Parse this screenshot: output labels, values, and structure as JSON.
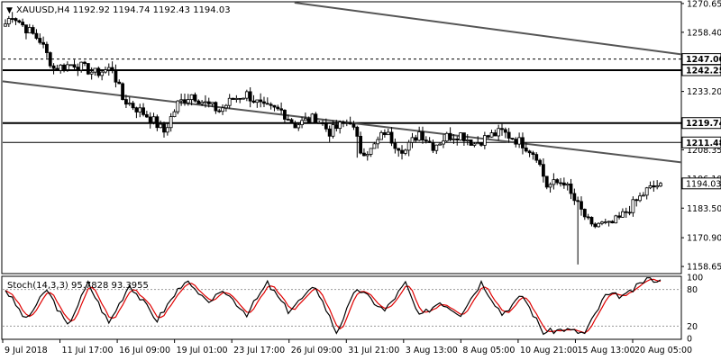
{
  "chart_data": {
    "type": "candlestick",
    "title": "XAUUSD,H4  1192.92 1194.74 1192.43 1194.03",
    "symbol": "XAUUSD",
    "timeframe": "H4",
    "last_ohlc": {
      "open": 1192.92,
      "high": 1194.74,
      "low": 1192.43,
      "close": 1194.03
    },
    "y_ticks": [
      "1270.65",
      "1258.40",
      "1233.20",
      "1208.35",
      "1196.10",
      "1183.50",
      "1170.90",
      "1158.65"
    ],
    "ylim": [
      1156.0,
      1271.0
    ],
    "x_labels": [
      "9 Jul 2018",
      "11 Jul 17:00",
      "16 Jul 09:00",
      "19 Jul 01:00",
      "23 Jul 17:00",
      "26 Jul 09:00",
      "31 Jul 21:00",
      "3 Aug 13:00",
      "8 Aug 05:00",
      "10 Aug 21:00",
      "15 Aug 13:00",
      "20 Aug 05:00"
    ],
    "horizontal_levels": [
      {
        "label": "1247.00",
        "value": 1247.0,
        "style": "dashed"
      },
      {
        "label": "1242.25",
        "value": 1242.25,
        "style": "solid-thick"
      },
      {
        "label": "1219.74",
        "value": 1219.74,
        "style": "solid-thick"
      },
      {
        "label": "1211.48",
        "value": 1211.48,
        "style": "solid-thin"
      }
    ],
    "current_price_label": "1194.03",
    "trendlines": [
      {
        "from": [
          0.43,
          1271.0
        ],
        "to": [
          1.0,
          1249.0
        ]
      },
      {
        "from": [
          0.0,
          1237.5
        ],
        "to": [
          1.0,
          1203.0
        ]
      }
    ],
    "anchors": [
      [
        0,
        1262
      ],
      [
        2,
        1266
      ],
      [
        6,
        1260
      ],
      [
        10,
        1255
      ],
      [
        14,
        1243
      ],
      [
        20,
        1245
      ],
      [
        26,
        1241
      ],
      [
        31,
        1243
      ],
      [
        34,
        1230
      ],
      [
        38,
        1226
      ],
      [
        42,
        1222
      ],
      [
        46,
        1216
      ],
      [
        50,
        1228
      ],
      [
        54,
        1232
      ],
      [
        58,
        1228
      ],
      [
        62,
        1225
      ],
      [
        66,
        1230
      ],
      [
        70,
        1232
      ],
      [
        75,
        1226
      ],
      [
        80,
        1225
      ],
      [
        84,
        1219
      ],
      [
        90,
        1222
      ],
      [
        94,
        1216
      ],
      [
        100,
        1221
      ],
      [
        103,
        1208
      ],
      [
        106,
        1208
      ],
      [
        110,
        1216
      ],
      [
        113,
        1211
      ],
      [
        116,
        1208
      ],
      [
        120,
        1216
      ],
      [
        124,
        1210
      ],
      [
        128,
        1214
      ],
      [
        132,
        1215
      ],
      [
        136,
        1211
      ],
      [
        140,
        1214
      ],
      [
        144,
        1216
      ],
      [
        150,
        1211
      ],
      [
        154,
        1206
      ],
      [
        157,
        1193
      ],
      [
        162,
        1195
      ],
      [
        164,
        1189
      ],
      [
        168,
        1180
      ],
      [
        170,
        1175
      ],
      [
        172,
        1177
      ],
      [
        175,
        1176
      ],
      [
        178,
        1179
      ],
      [
        182,
        1185
      ],
      [
        186,
        1191
      ],
      [
        190,
        1194
      ]
    ],
    "candle_count": 191,
    "indicator": {
      "name": "Stoch(14,3,3)",
      "title": "Stoch(14,3,3) 95.7828 93.3955",
      "main": 95.7828,
      "signal": 93.3955,
      "levels": [
        80,
        20
      ],
      "scale_labels": [
        "100",
        "80",
        "20",
        "0"
      ],
      "anchors": [
        [
          0,
          80
        ],
        [
          6,
          30
        ],
        [
          12,
          80
        ],
        [
          18,
          20
        ],
        [
          24,
          90
        ],
        [
          30,
          25
        ],
        [
          36,
          88
        ],
        [
          44,
          30
        ],
        [
          52,
          95
        ],
        [
          58,
          60
        ],
        [
          64,
          75
        ],
        [
          70,
          40
        ],
        [
          76,
          90
        ],
        [
          82,
          45
        ],
        [
          90,
          85
        ],
        [
          96,
          10
        ],
        [
          102,
          82
        ],
        [
          110,
          45
        ],
        [
          116,
          90
        ],
        [
          120,
          35
        ],
        [
          126,
          60
        ],
        [
          132,
          40
        ],
        [
          138,
          92
        ],
        [
          144,
          40
        ],
        [
          150,
          70
        ],
        [
          156,
          10
        ],
        [
          162,
          15
        ],
        [
          168,
          8
        ],
        [
          174,
          70
        ],
        [
          180,
          70
        ],
        [
          186,
          98
        ],
        [
          190,
          95
        ]
      ]
    },
    "colors": {
      "bull": "#ffffff",
      "bear": "#000000",
      "main_line": "#000000",
      "signal_line": "#e00000",
      "trendline": "#555555"
    },
    "grid": false
  }
}
